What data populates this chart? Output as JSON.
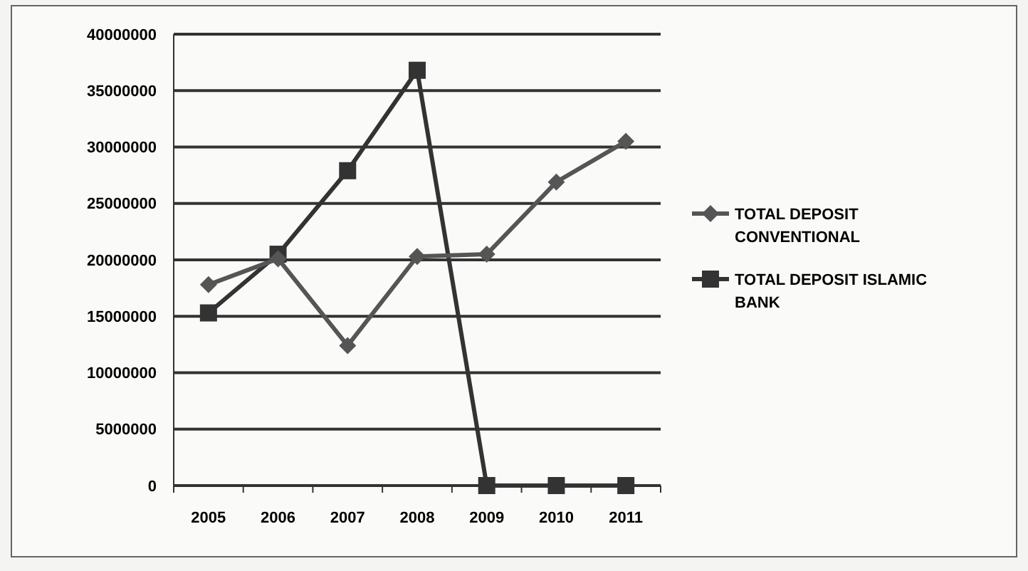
{
  "chart_data": {
    "type": "line",
    "categories": [
      "2005",
      "2006",
      "2007",
      "2008",
      "2009",
      "2010",
      "2011"
    ],
    "series": [
      {
        "name": "TOTAL DEPOSIT CONVENTIONAL",
        "color": "#555555",
        "marker": "diamond",
        "values": [
          17800000,
          20100000,
          12400000,
          20300000,
          20500000,
          26900000,
          30500000
        ]
      },
      {
        "name": "TOTAL DEPOSIT ISLAMIC BANK",
        "color": "#333333",
        "marker": "square",
        "values": [
          15300000,
          20500000,
          27900000,
          36800000,
          0,
          0,
          0
        ]
      }
    ],
    "ylim": [
      0,
      40000000
    ],
    "yticks": [
      0,
      5000000,
      10000000,
      15000000,
      20000000,
      25000000,
      30000000,
      35000000,
      40000000
    ],
    "grid": "y",
    "legend": "right"
  }
}
